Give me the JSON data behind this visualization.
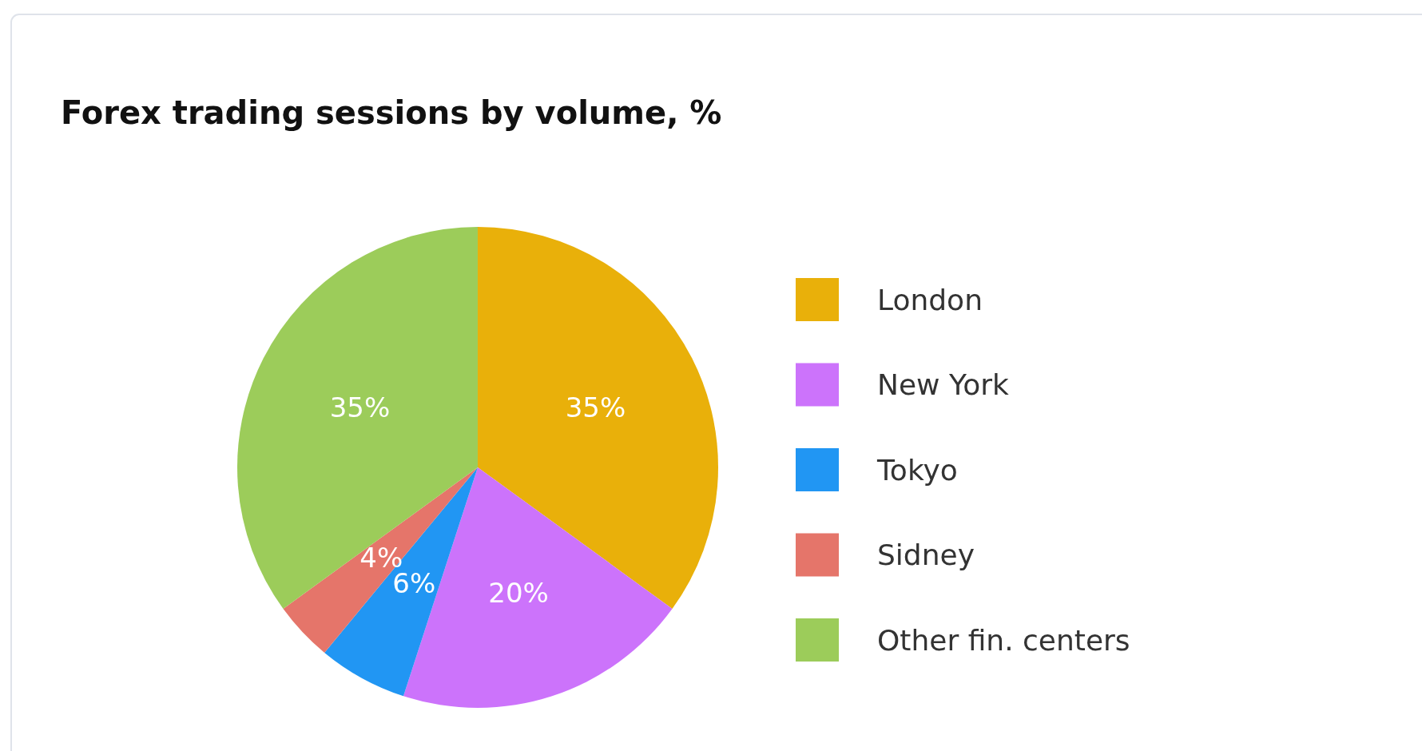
{
  "chart_data": {
    "type": "pie",
    "title": "Forex trading sessions by volume, %",
    "categories": [
      "London",
      "New York",
      "Tokyo",
      "Sidney",
      "Other fin. centers"
    ],
    "values": [
      35,
      20,
      6,
      4,
      35
    ],
    "value_labels": [
      "35%",
      "20%",
      "6%",
      "4%",
      "35%"
    ],
    "colors": [
      "#e9b00a",
      "#cc73fb",
      "#2196f3",
      "#e5756a",
      "#9ccc5a"
    ],
    "legend": "right"
  }
}
